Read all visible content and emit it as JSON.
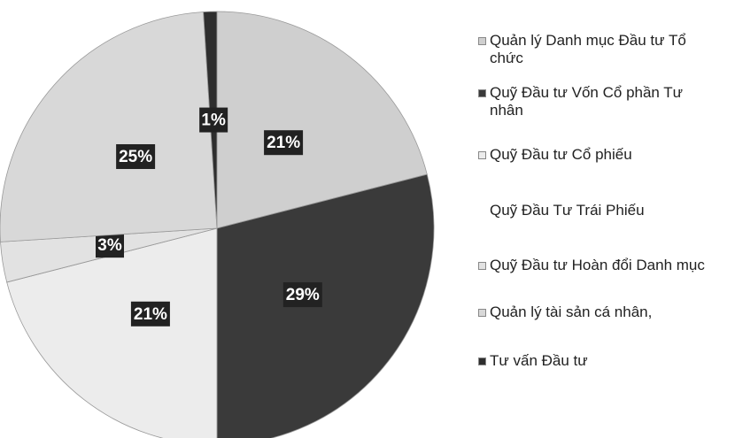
{
  "chart_data": {
    "type": "pie",
    "categories": [
      "Quản lý Danh mục Đầu tư Tổ chức",
      "Quỹ Đầu tư Vốn Cổ phần Tư nhân",
      "Quỹ Đầu tư Cổ phiếu",
      "Quỹ Đầu Tư Trái Phiếu",
      "Quỹ Đầu tư Hoàn đổi Danh mục",
      "Quản lý tài sản cá nhân,",
      "Tư vấn Đầu tư"
    ],
    "values": [
      21,
      29,
      21,
      0,
      3,
      25,
      1
    ],
    "value_labels": [
      "21%",
      "29%",
      "21%",
      null,
      "3%",
      "25%",
      "1%"
    ],
    "colors": [
      "#cfcfcf",
      "#3a3a3a",
      "#ececec",
      "#ffffff",
      "#e2e2e2",
      "#d8d8d8",
      "#2e2e2e"
    ]
  }
}
